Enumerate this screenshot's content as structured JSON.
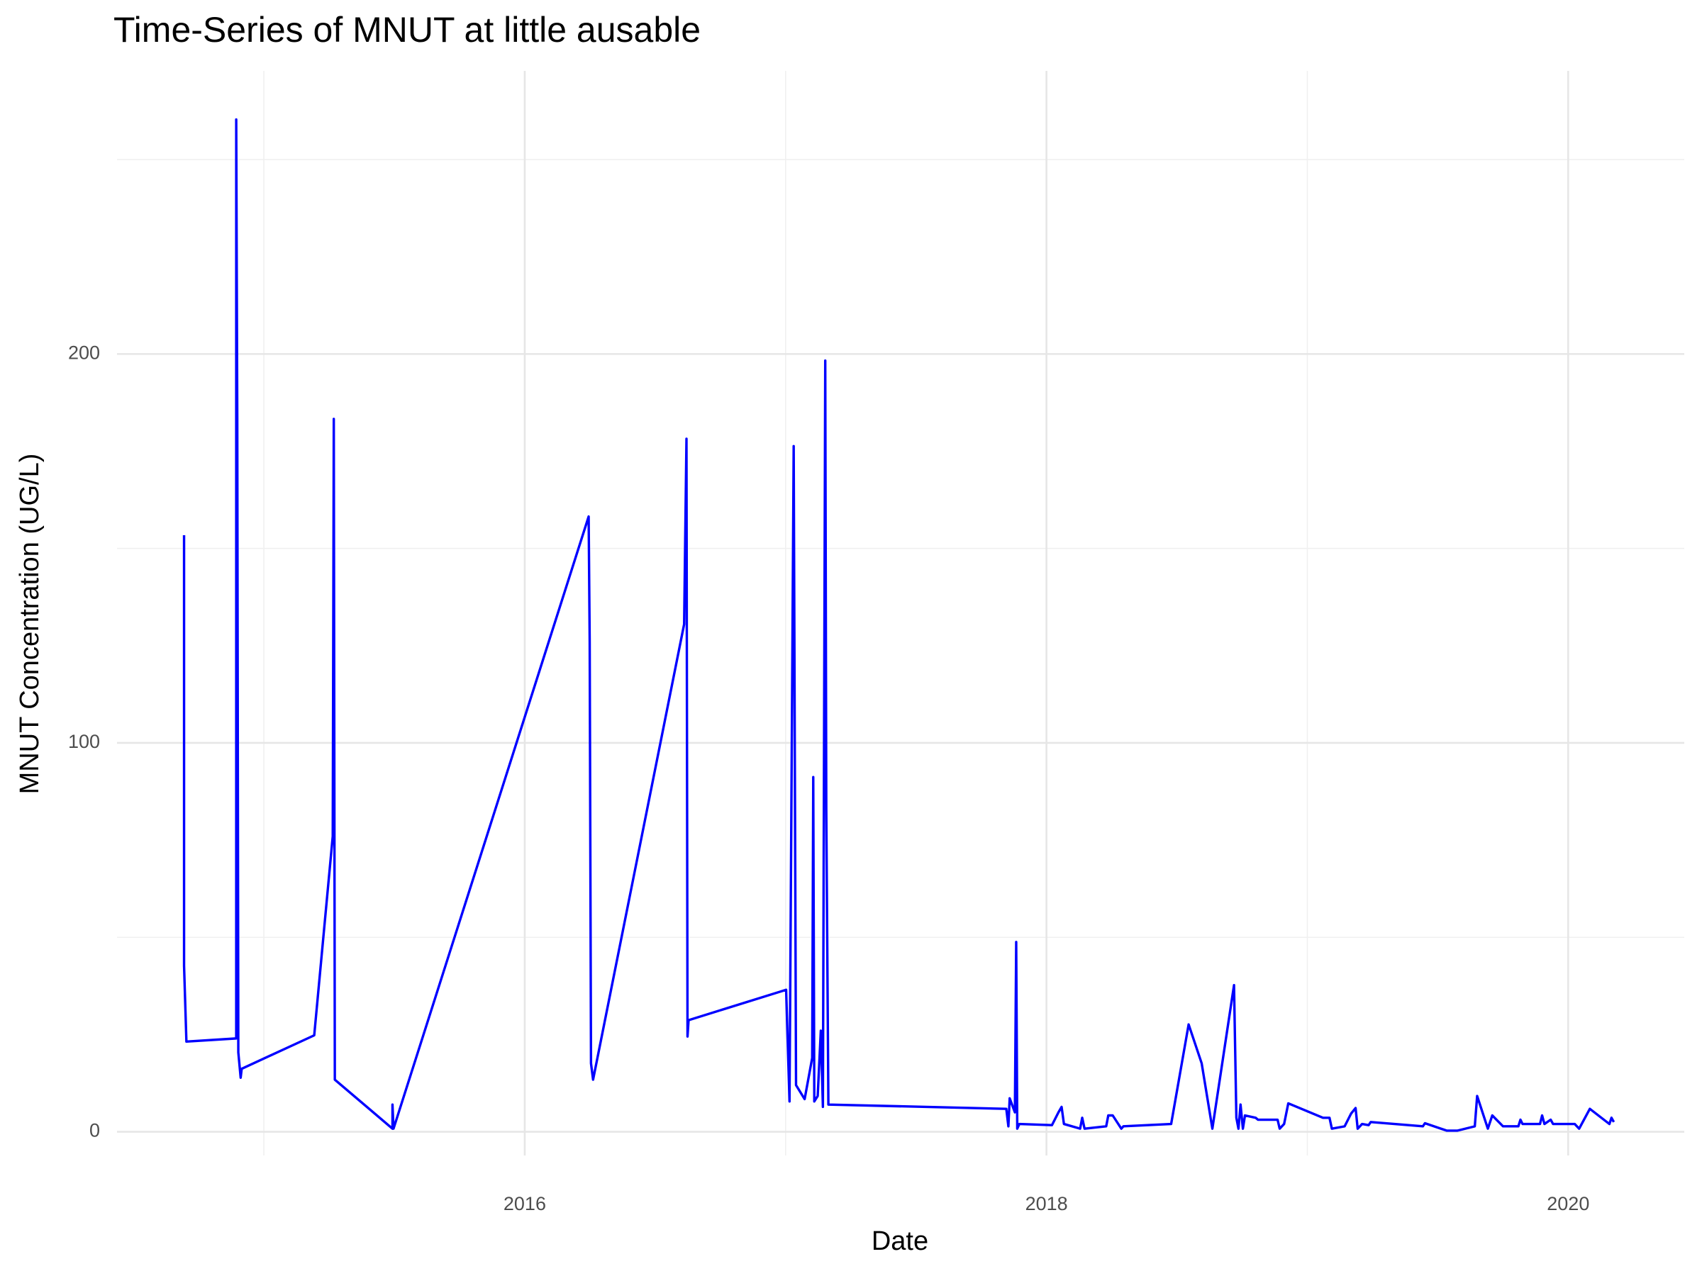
{
  "chart_data": {
    "type": "line",
    "title": "Time-Series of MNUT at little ausable",
    "x_label": "Date",
    "y_label": "MNUT Concentration (UG/L)",
    "color": "#0000ff",
    "grid": true,
    "xlim": [
      2014.437,
      2020.445
    ],
    "xticks": [
      2016,
      2018,
      2020
    ],
    "ylim": [
      -6.1,
      272.8
    ],
    "yticks": [
      0,
      100,
      200
    ],
    "x": [
      2014.694,
      2014.694,
      2014.703,
      2014.894,
      2014.894,
      2014.898,
      2014.902,
      2014.911,
      2014.915,
      2015.193,
      2015.264,
      2015.268,
      2015.272,
      2015.493,
      2015.493,
      2015.497,
      2016.245,
      2016.249,
      2016.254,
      2016.262,
      2016.611,
      2016.62,
      2016.624,
      2016.628,
      2017.002,
      2017.015,
      2017.031,
      2017.04,
      2017.073,
      2017.102,
      2017.106,
      2017.11,
      2017.123,
      2017.135,
      2017.143,
      2017.152,
      2017.156,
      2017.164,
      2017.846,
      2017.854,
      2017.859,
      2017.879,
      2017.884,
      2017.888,
      2017.896,
      2018.021,
      2018.046,
      2018.058,
      2018.067,
      2018.129,
      2018.137,
      2018.146,
      2018.229,
      2018.237,
      2018.254,
      2018.287,
      2018.295,
      2018.478,
      2018.545,
      2018.595,
      2018.636,
      2018.719,
      2018.728,
      2018.736,
      2018.744,
      2018.753,
      2018.761,
      2018.802,
      2018.811,
      2018.886,
      2018.894,
      2018.911,
      2018.927,
      2019.06,
      2019.085,
      2019.094,
      2019.143,
      2019.168,
      2019.185,
      2019.193,
      2019.21,
      2019.235,
      2019.243,
      2019.443,
      2019.451,
      2019.534,
      2019.576,
      2019.642,
      2019.651,
      2019.692,
      2019.709,
      2019.75,
      2019.809,
      2019.817,
      2019.825,
      2019.892,
      2019.9,
      2019.909,
      2019.933,
      2019.942,
      2020.025,
      2020.042,
      2020.083,
      2020.158,
      2020.166,
      2020.175
    ],
    "values": [
      153.4,
      42.7,
      23.2,
      24.0,
      260.3,
      183.5,
      20.4,
      13.9,
      16.2,
      24.8,
      76,
      183.3,
      13.4,
      0.8,
      7,
      0.8,
      158.2,
      126,
      17.6,
      13.4,
      130.5,
      178.2,
      24.5,
      28.7,
      36.5,
      7.8,
      176.3,
      12,
      8.4,
      19,
      91.2,
      7.8,
      9.2,
      26,
      6.4,
      198.3,
      83,
      7,
      5.9,
      1.4,
      8.6,
      5,
      48.8,
      0.8,
      2,
      1.7,
      5,
      6.4,
      2,
      0.8,
      3.6,
      0.8,
      1.4,
      4.2,
      4.2,
      0.8,
      1.4,
      2,
      27.6,
      17.6,
      0.8,
      37.7,
      3.6,
      0.8,
      7,
      0.8,
      4.2,
      3.6,
      3.1,
      3.1,
      0.8,
      2,
      7.3,
      3.6,
      3.6,
      0.8,
      1.4,
      4.7,
      6.1,
      0.8,
      2,
      1.7,
      2.5,
      1.4,
      2.2,
      0.3,
      0.3,
      1.4,
      9.2,
      0.8,
      4.2,
      1.4,
      1.4,
      3.1,
      2,
      2,
      4.2,
      2,
      3.1,
      2,
      2,
      0.8,
      5.9,
      2,
      3.6,
      2.5
    ]
  }
}
